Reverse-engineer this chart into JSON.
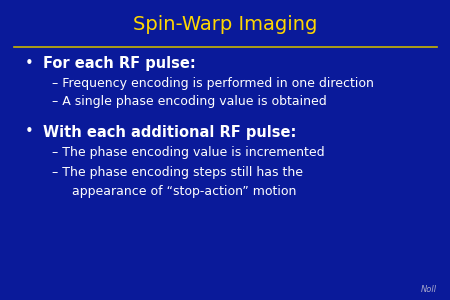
{
  "title": "Spin-Warp Imaging",
  "title_color": "#FFD700",
  "title_fontsize": 14,
  "background_color": "#0a1a9a",
  "line_color": "#C8B400",
  "bullet1": "For each RF pulse:",
  "bullet1_fontsize": 10.5,
  "sub1a": "Frequency encoding is performed in one direction",
  "sub1b": "A single phase encoding value is obtained",
  "sub_color": "#FFFFFF",
  "sub_fontsize": 9,
  "bullet2": "With each additional RF pulse:",
  "bullet2_fontsize": 10.5,
  "bullet_color": "#FFFFFF",
  "sub2a": "The phase encoding value is incremented",
  "sub2b_line1": "The phase encoding steps still has the",
  "sub2b_line2": "appearance of “stop-action” motion",
  "watermark": "Noll",
  "watermark_color": "#AAAACC",
  "watermark_fontsize": 6
}
